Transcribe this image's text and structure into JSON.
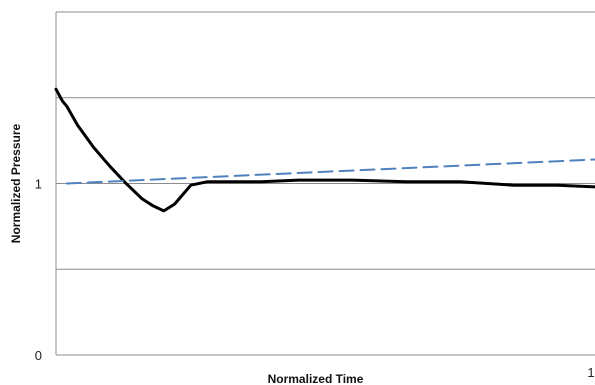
{
  "chart_data": {
    "type": "line",
    "title": "",
    "xlabel": "Normalized Time",
    "ylabel": "Normalized Pressure",
    "xlim": [
      0,
      1
    ],
    "ylim": [
      0,
      2.0
    ],
    "grid": true,
    "y_ticks": [
      {
        "value": 0,
        "label": "0"
      },
      {
        "value": 0.5,
        "label": ""
      },
      {
        "value": 1,
        "label": "1"
      },
      {
        "value": 1.5,
        "label": ""
      },
      {
        "value": 2.0,
        "label": ""
      }
    ],
    "x_tick_labels": [
      {
        "value": 0,
        "label": ""
      },
      {
        "value": 1,
        "label": "1"
      }
    ],
    "series": [
      {
        "style": "solid",
        "color": "#000000",
        "x": [
          0,
          0.012,
          0.02,
          0.04,
          0.07,
          0.1,
          0.13,
          0.16,
          0.18,
          0.2,
          0.22,
          0.25,
          0.28,
          0.32,
          0.38,
          0.45,
          0.55,
          0.65,
          0.75,
          0.85,
          0.93,
          1.0
        ],
        "y": [
          1.55,
          1.48,
          1.45,
          1.34,
          1.21,
          1.1,
          1.0,
          0.91,
          0.87,
          0.84,
          0.88,
          0.99,
          1.01,
          1.01,
          1.01,
          1.02,
          1.02,
          1.01,
          1.01,
          0.99,
          0.99,
          0.98
        ]
      },
      {
        "style": "dashed",
        "color": "#4f81bd",
        "x": [
          0.02,
          1.0
        ],
        "y": [
          1.0,
          1.14
        ]
      }
    ]
  }
}
